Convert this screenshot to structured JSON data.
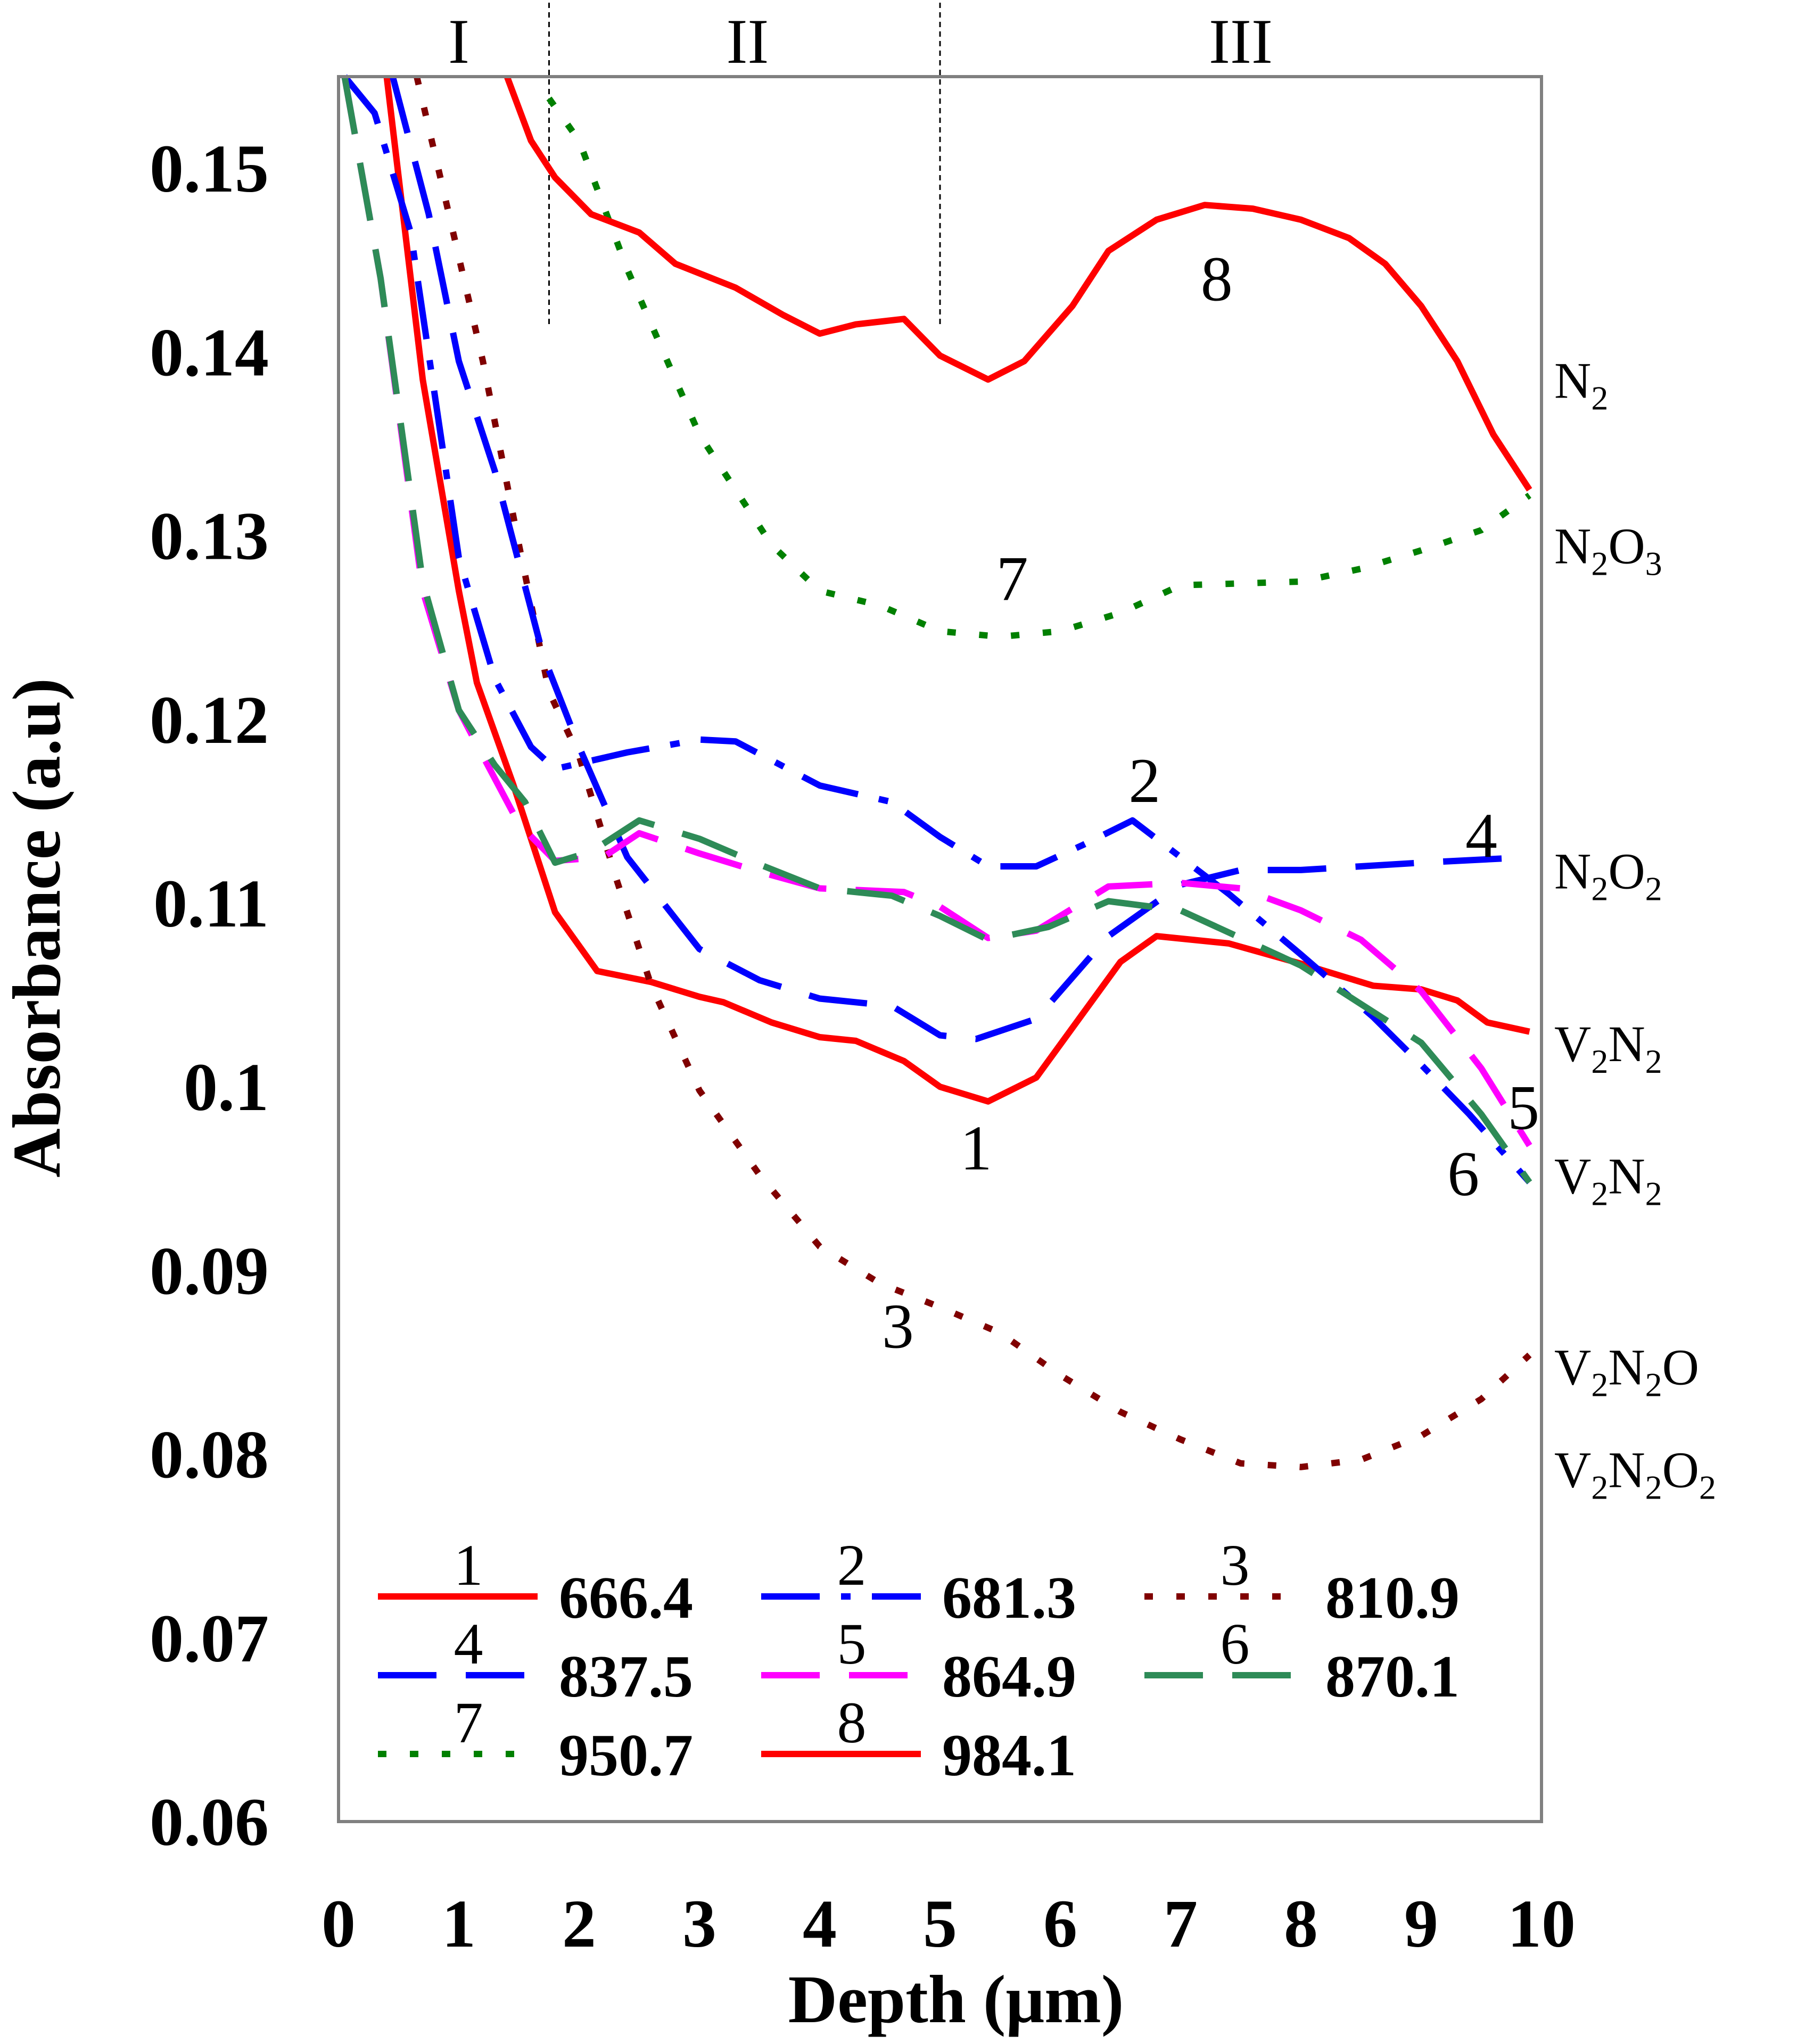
{
  "chart_data": {
    "type": "line",
    "xlabel": "Depth (μm)",
    "ylabel": "Absorbance (a.u)",
    "xlim": [
      0,
      10
    ],
    "ylim": [
      0.06,
      0.155
    ],
    "x_ticks": [
      "0",
      "1",
      "2",
      "3",
      "4",
      "5",
      "6",
      "7",
      "8",
      "9",
      "10"
    ],
    "y_ticks": [
      "0.15",
      "0.14",
      "0.13",
      "0.12",
      "0.11",
      "0.1",
      "0.09",
      "0.08",
      "0.07",
      "0.06"
    ],
    "y_tick_values": [
      0.15,
      0.14,
      0.13,
      0.12,
      0.11,
      0.1,
      0.09,
      0.08,
      0.07,
      0.06
    ],
    "grid": false,
    "legend_position": "bottom-left",
    "regions": [
      {
        "label": "I",
        "x": 1.0
      },
      {
        "label": "II",
        "x": 3.4
      },
      {
        "label": "III",
        "x": 7.5
      }
    ],
    "region_boundaries": [
      1.75,
      5.0
    ],
    "species_labels": [
      {
        "base": "N",
        "sub": "2",
        "tail": "",
        "y": 0.1375
      },
      {
        "base": "N",
        "sub": "2",
        "tail": "O",
        "sub2": "3",
        "y": 0.1285
      },
      {
        "base": "N",
        "sub": "2",
        "tail": "O",
        "sub2": "2",
        "y": 0.1108
      },
      {
        "base": "V",
        "sub": "2",
        "tail": "N",
        "sub2": "2",
        "y": 0.1014
      },
      {
        "base": "V",
        "sub": "2",
        "tail": "N",
        "sub2": "2",
        "y": 0.0942
      },
      {
        "base": "V",
        "sub": "2",
        "tail": "N",
        "sub2": "2",
        "tail2": "O",
        "y": 0.0838
      },
      {
        "base": "V",
        "sub": "2",
        "tail": "N",
        "sub2": "2",
        "tail2": "O",
        "sub3": "2",
        "y": 0.0782
      }
    ],
    "series": [
      {
        "id": "1",
        "name": "666.4",
        "color": "#ff0000",
        "dash": "solid",
        "label_pos": [
          5.3,
          0.0955
        ],
        "points": [
          [
            0.4,
            0.155
          ],
          [
            0.7,
            0.1385
          ],
          [
            1.0,
            0.127
          ],
          [
            1.15,
            0.122
          ],
          [
            1.45,
            0.1165
          ],
          [
            1.8,
            0.1095
          ],
          [
            2.15,
            0.1063
          ],
          [
            2.6,
            0.1057
          ],
          [
            3.0,
            0.1049
          ],
          [
            3.2,
            0.1046
          ],
          [
            3.6,
            0.1035
          ],
          [
            4.0,
            0.1027
          ],
          [
            4.3,
            0.1025
          ],
          [
            4.7,
            0.1014
          ],
          [
            5.0,
            0.1
          ],
          [
            5.4,
            0.0992
          ],
          [
            5.8,
            0.1005
          ],
          [
            6.5,
            0.1068
          ],
          [
            6.8,
            0.1082
          ],
          [
            7.4,
            0.1078
          ],
          [
            8.0,
            0.1067
          ],
          [
            8.6,
            0.1055
          ],
          [
            9.0,
            0.1053
          ],
          [
            9.3,
            0.1047
          ],
          [
            9.55,
            0.1035
          ],
          [
            9.9,
            0.103
          ]
        ]
      },
      {
        "id": "2",
        "name": "681.3",
        "color": "#0000ff",
        "dash": "dashdot",
        "label_pos": [
          6.7,
          0.1155
        ],
        "points": [
          [
            0.05,
            0.155
          ],
          [
            0.3,
            0.153
          ],
          [
            0.6,
            0.1465
          ],
          [
            1.0,
            0.1288
          ],
          [
            1.3,
            0.1222
          ],
          [
            1.6,
            0.1185
          ],
          [
            1.8,
            0.1173
          ],
          [
            2.4,
            0.1182
          ],
          [
            3.0,
            0.1189
          ],
          [
            3.3,
            0.1188
          ],
          [
            4.0,
            0.1164
          ],
          [
            4.6,
            0.1155
          ],
          [
            5.0,
            0.1136
          ],
          [
            5.4,
            0.112
          ],
          [
            5.8,
            0.112
          ],
          [
            6.2,
            0.1132
          ],
          [
            6.6,
            0.1145
          ],
          [
            7.0,
            0.1125
          ],
          [
            7.4,
            0.1105
          ],
          [
            8.0,
            0.1072
          ],
          [
            8.6,
            0.1038
          ],
          [
            9.0,
            0.1012
          ],
          [
            9.4,
            0.0985
          ],
          [
            9.9,
            0.0948
          ]
        ]
      },
      {
        "id": "3",
        "name": "810.9",
        "color": "#800000",
        "dash": "dot",
        "label_pos": [
          4.65,
          0.0858
        ],
        "points": [
          [
            0.65,
            0.155
          ],
          [
            0.9,
            0.148
          ],
          [
            1.2,
            0.1395
          ],
          [
            1.5,
            0.1295
          ],
          [
            1.75,
            0.1215
          ],
          [
            2.0,
            0.118
          ],
          [
            2.3,
            0.1115
          ],
          [
            2.6,
            0.1055
          ],
          [
            3.0,
            0.0998
          ],
          [
            3.5,
            0.0952
          ],
          [
            4.0,
            0.0913
          ],
          [
            4.5,
            0.0893
          ],
          [
            5.0,
            0.088
          ],
          [
            5.5,
            0.0866
          ],
          [
            6.0,
            0.0843
          ],
          [
            6.5,
            0.0823
          ],
          [
            7.0,
            0.0808
          ],
          [
            7.5,
            0.0795
          ],
          [
            8.0,
            0.0793
          ],
          [
            8.5,
            0.0797
          ],
          [
            9.0,
            0.081
          ],
          [
            9.5,
            0.083
          ],
          [
            9.9,
            0.0854
          ]
        ]
      },
      {
        "id": "4",
        "name": "837.5",
        "color": "#0000ff",
        "dash": "longdash",
        "label_pos": [
          9.5,
          0.1125
        ],
        "points": [
          [
            0.45,
            0.155
          ],
          [
            0.75,
            0.1475
          ],
          [
            1.0,
            0.1395
          ],
          [
            1.3,
            0.1335
          ],
          [
            1.7,
            0.1235
          ],
          [
            2.0,
            0.1185
          ],
          [
            2.4,
            0.1125
          ],
          [
            3.0,
            0.1075
          ],
          [
            3.5,
            0.1058
          ],
          [
            4.0,
            0.1048
          ],
          [
            4.6,
            0.1044
          ],
          [
            5.0,
            0.1028
          ],
          [
            5.3,
            0.1026
          ],
          [
            5.8,
            0.1037
          ],
          [
            6.4,
            0.1082
          ],
          [
            7.0,
            0.111
          ],
          [
            7.5,
            0.1118
          ],
          [
            8.0,
            0.1118
          ],
          [
            9.0,
            0.1122
          ],
          [
            9.9,
            0.1125
          ]
        ]
      },
      {
        "id": "5",
        "name": "864.9",
        "color": "#ff00ff",
        "dash": "longdash",
        "label_pos": [
          9.85,
          0.0977
        ],
        "points": [
          [
            0.05,
            0.155
          ],
          [
            0.35,
            0.144
          ],
          [
            0.7,
            0.127
          ],
          [
            1.0,
            0.1205
          ],
          [
            1.2,
            0.118
          ],
          [
            1.5,
            0.1143
          ],
          [
            1.8,
            0.1123
          ],
          [
            2.2,
            0.1125
          ],
          [
            2.5,
            0.1138
          ],
          [
            3.0,
            0.1127
          ],
          [
            3.5,
            0.1117
          ],
          [
            4.0,
            0.1108
          ],
          [
            4.7,
            0.1106
          ],
          [
            5.0,
            0.1098
          ],
          [
            5.4,
            0.1081
          ],
          [
            5.8,
            0.1085
          ],
          [
            6.4,
            0.1109
          ],
          [
            7.0,
            0.1111
          ],
          [
            7.5,
            0.1108
          ],
          [
            8.0,
            0.1096
          ],
          [
            8.5,
            0.108
          ],
          [
            9.0,
            0.1052
          ],
          [
            9.5,
            0.101
          ],
          [
            9.9,
            0.0968
          ]
        ]
      },
      {
        "id": "6",
        "name": "870.1",
        "color": "#2e8b57",
        "dash": "longdash",
        "label_pos": [
          9.35,
          0.0941
        ],
        "points": [
          [
            0.05,
            0.155
          ],
          [
            0.35,
            0.144
          ],
          [
            0.7,
            0.1275
          ],
          [
            1.0,
            0.1205
          ],
          [
            1.3,
            0.1175
          ],
          [
            1.55,
            0.1155
          ],
          [
            1.8,
            0.1122
          ],
          [
            2.1,
            0.1128
          ],
          [
            2.5,
            0.1145
          ],
          [
            3.0,
            0.1135
          ],
          [
            3.5,
            0.1121
          ],
          [
            4.0,
            0.1108
          ],
          [
            4.6,
            0.1104
          ],
          [
            5.0,
            0.1093
          ],
          [
            5.4,
            0.108
          ],
          [
            5.9,
            0.1087
          ],
          [
            6.4,
            0.1101
          ],
          [
            7.0,
            0.1096
          ],
          [
            7.6,
            0.1078
          ],
          [
            8.0,
            0.1066
          ],
          [
            8.5,
            0.1045
          ],
          [
            9.0,
            0.1024
          ],
          [
            9.5,
            0.0985
          ],
          [
            9.9,
            0.0948
          ]
        ]
      },
      {
        "id": "7",
        "name": "950.7",
        "color": "#008000",
        "dash": "dot",
        "label_pos": [
          5.6,
          0.1265
        ],
        "points": [
          [
            1.75,
            0.1538
          ],
          [
            2.0,
            0.1515
          ],
          [
            2.4,
            0.1445
          ],
          [
            3.0,
            0.1355
          ],
          [
            3.6,
            0.1295
          ],
          [
            4.0,
            0.127
          ],
          [
            4.5,
            0.1262
          ],
          [
            5.0,
            0.1248
          ],
          [
            5.5,
            0.1245
          ],
          [
            6.0,
            0.1248
          ],
          [
            6.5,
            0.1258
          ],
          [
            7.0,
            0.1273
          ],
          [
            8.0,
            0.1275
          ],
          [
            8.5,
            0.1282
          ],
          [
            9.0,
            0.1292
          ],
          [
            9.5,
            0.1303
          ],
          [
            9.9,
            0.1322
          ]
        ]
      },
      {
        "id": "8",
        "name": "984.1",
        "color": "#ff0000",
        "dash": "solid",
        "label_pos": [
          7.3,
          0.1428
        ],
        "points": [
          [
            1.4,
            0.155
          ],
          [
            1.6,
            0.1515
          ],
          [
            1.8,
            0.1495
          ],
          [
            2.1,
            0.1475
          ],
          [
            2.5,
            0.1465
          ],
          [
            2.8,
            0.1448
          ],
          [
            3.3,
            0.1435
          ],
          [
            3.7,
            0.142
          ],
          [
            4.0,
            0.141
          ],
          [
            4.3,
            0.1415
          ],
          [
            4.7,
            0.1418
          ],
          [
            5.0,
            0.1398
          ],
          [
            5.4,
            0.1385
          ],
          [
            5.7,
            0.1395
          ],
          [
            6.1,
            0.1425
          ],
          [
            6.4,
            0.1455
          ],
          [
            6.8,
            0.1472
          ],
          [
            7.2,
            0.148
          ],
          [
            7.6,
            0.1478
          ],
          [
            8.0,
            0.1472
          ],
          [
            8.4,
            0.1462
          ],
          [
            8.7,
            0.1448
          ],
          [
            9.0,
            0.1425
          ],
          [
            9.3,
            0.1395
          ],
          [
            9.6,
            0.1355
          ],
          [
            9.9,
            0.1325
          ]
        ]
      }
    ]
  }
}
